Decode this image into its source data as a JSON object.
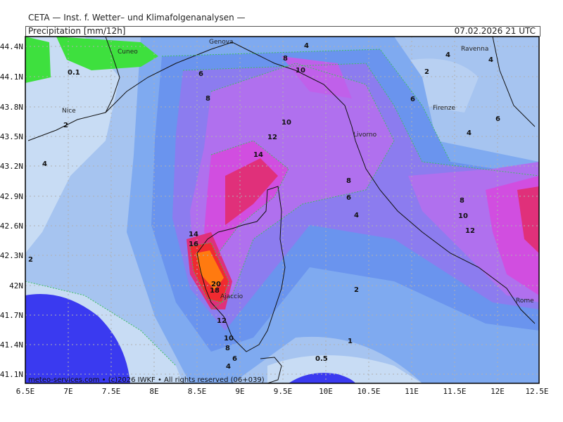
{
  "header": {
    "title": "CETA — Inst. f. Wetter– und Klimafolgenanalysen —",
    "variable": "Precipitation [mm/12h]",
    "datetime": "07.02.2026 21 UTC"
  },
  "footer": "meteo-services.com • (c)2026 IWKF • All rights reserved (06+039)",
  "axes": {
    "lat_ticks": [
      "44.4N",
      "44.1N",
      "43.8N",
      "43.5N",
      "43.2N",
      "42.9N",
      "42.6N",
      "42.3N",
      "42N",
      "41.7N",
      "41.4N",
      "41.1N"
    ],
    "lon_ticks": [
      "6.5E",
      "7E",
      "7.5E",
      "8E",
      "8.5E",
      "9E",
      "9.5E",
      "10E",
      "10.5E",
      "11E",
      "11.5E",
      "12E",
      "12.5E"
    ]
  },
  "cities": [
    "Genova",
    "Cuneo",
    "Nice",
    "Ravenna",
    "Firenze",
    "Livorno",
    "Ajaccio",
    "Rome"
  ],
  "contour_labels": [
    "0.1",
    "2",
    "4",
    "6",
    "8",
    "10",
    "12",
    "14",
    "16",
    "18",
    "20",
    "8",
    "10",
    "12",
    "14",
    "6",
    "4",
    "2",
    "1",
    "0.5",
    "6",
    "4",
    "2",
    "4",
    "6",
    "8",
    "10",
    "12",
    "4",
    "6",
    "8",
    "10",
    "2"
  ],
  "colors": {
    "lt_blue": "#c8dcf4",
    "mid_blue": "#a6c4f0",
    "blue": "#7faaf0",
    "blue2": "#6a94ee",
    "violet": "#8c7cef",
    "purple": "#b070ee",
    "magenta": "#d14ee0",
    "pink": "#e0307a",
    "red": "#f02a30",
    "orange": "#ff7a10",
    "deep_blue": "#3a3af0",
    "green": "#3ee03e"
  }
}
